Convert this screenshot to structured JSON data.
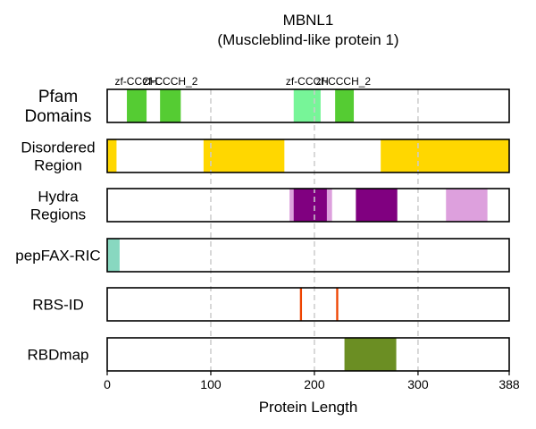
{
  "chart_data": {
    "type": "domain-track",
    "title": "MBNL1",
    "subtitle": "(Muscleblind-like protein 1)",
    "xlabel": "Protein Length",
    "xlim": [
      0,
      388
    ],
    "xticks": [
      0,
      100,
      200,
      300,
      388
    ],
    "grid": true,
    "tracks": [
      {
        "label": [
          "Pfam",
          "Domains"
        ],
        "segments": [
          {
            "start": 19,
            "end": 38,
            "color": "#55cc33"
          },
          {
            "start": 51,
            "end": 71,
            "color": "#55cc33"
          },
          {
            "start": 180,
            "end": 206,
            "color": "#77f598"
          },
          {
            "start": 220,
            "end": 238,
            "color": "#55cc33"
          }
        ],
        "annotations": [
          {
            "text": "zf-CCCH",
            "at": 28
          },
          {
            "text": "zf-C",
            "at": 44
          },
          {
            "text": "zf-CCCH_2",
            "at": 61
          },
          {
            "text": "zf-CCCH",
            "at": 193
          },
          {
            "text": "zf-CCCH_2",
            "at": 228
          }
        ]
      },
      {
        "label": [
          "Disordered",
          "Region"
        ],
        "segments": [
          {
            "start": 0,
            "end": 9,
            "color": "#ffd700"
          },
          {
            "start": 93,
            "end": 171,
            "color": "#ffd700"
          },
          {
            "start": 264,
            "end": 388,
            "color": "#ffd700"
          }
        ]
      },
      {
        "label": [
          "Hydra",
          "Regions"
        ],
        "segments": [
          {
            "start": 176,
            "end": 217,
            "color": "#dda0dd"
          },
          {
            "start": 180,
            "end": 212,
            "color": "#800080"
          },
          {
            "start": 240,
            "end": 280,
            "color": "#800080"
          },
          {
            "start": 327,
            "end": 367,
            "color": "#dda0dd"
          }
        ]
      },
      {
        "label": [
          "pepFAX-RIC"
        ],
        "segments": [
          {
            "start": 0,
            "end": 12,
            "color": "#88d8c0"
          }
        ]
      },
      {
        "label": [
          "RBS-ID"
        ],
        "segments": [
          {
            "start": 186,
            "end": 188,
            "color": "#ee4400"
          },
          {
            "start": 221,
            "end": 223,
            "color": "#ee4400"
          }
        ]
      },
      {
        "label": [
          "RBDmap"
        ],
        "segments": [
          {
            "start": 229,
            "end": 279,
            "color": "#6b8e23"
          }
        ]
      }
    ]
  }
}
